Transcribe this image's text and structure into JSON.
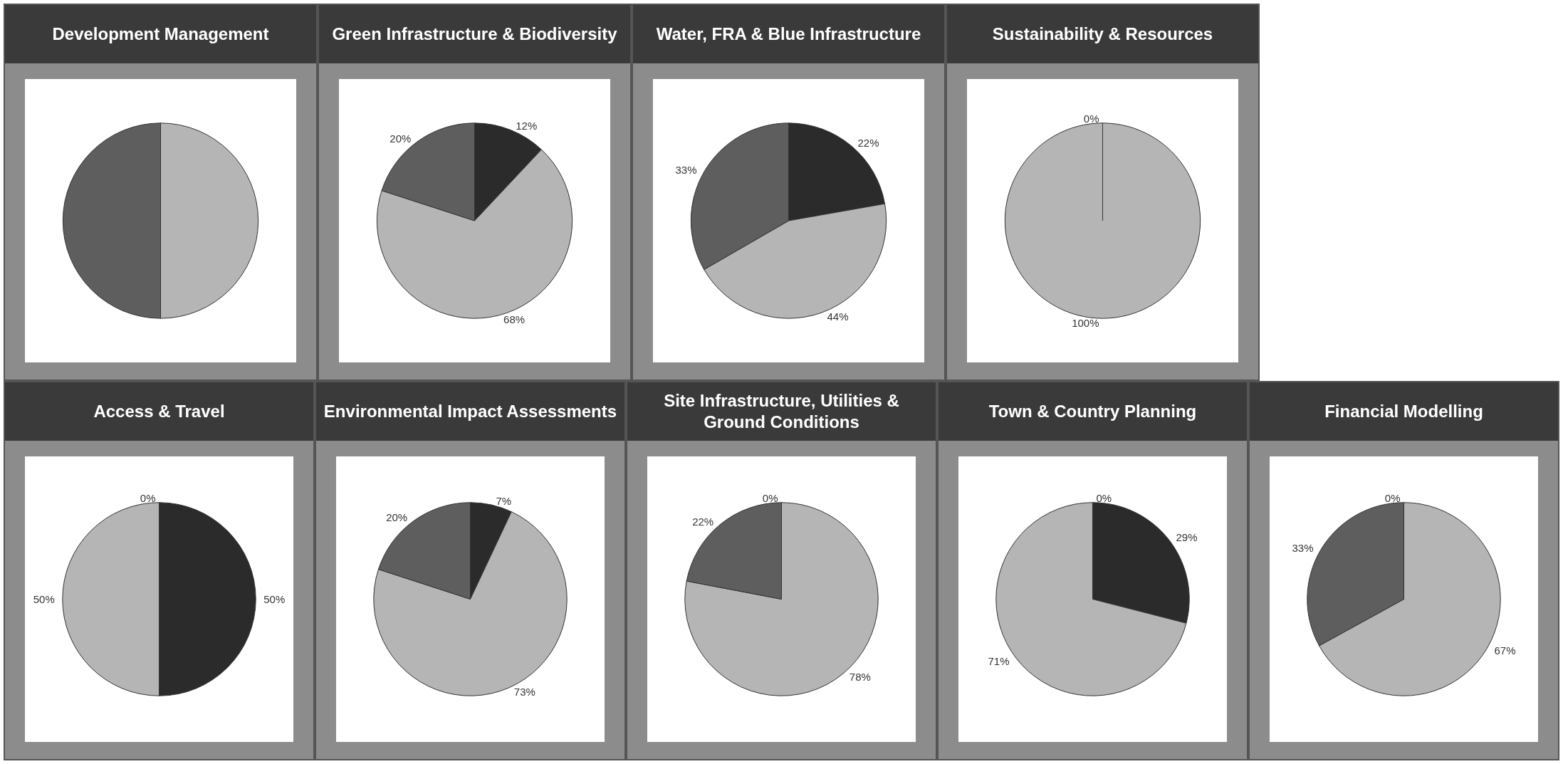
{
  "chart_data": [
    {
      "type": "pie",
      "title": "Development Management",
      "categories": [
        null,
        null,
        null
      ],
      "values": [
        0,
        50,
        50
      ],
      "colors": [
        "#2b2b2b",
        "#b5b5b5",
        "#5e5e5e"
      ],
      "value_labels": [
        null,
        null,
        null
      ]
    },
    {
      "type": "pie",
      "title": "Green Infrastructure & Biodiversity",
      "categories": [
        null,
        null,
        null
      ],
      "values": [
        12,
        68,
        20
      ],
      "colors": [
        "#2b2b2b",
        "#b5b5b5",
        "#5e5e5e"
      ],
      "value_labels": [
        "12%",
        "68%",
        "20%"
      ]
    },
    {
      "type": "pie",
      "title": "Water, FRA & Blue Infrastructure",
      "categories": [
        null,
        null,
        null
      ],
      "values": [
        22,
        44,
        33
      ],
      "colors": [
        "#2b2b2b",
        "#b5b5b5",
        "#5e5e5e"
      ],
      "value_labels": [
        "22%",
        "44%",
        "33%"
      ]
    },
    {
      "type": "pie",
      "title": "Sustainability & Resources",
      "categories": [
        null,
        null,
        null
      ],
      "values": [
        0,
        100,
        0
      ],
      "colors": [
        "#2b2b2b",
        "#b5b5b5",
        "#5e5e5e"
      ],
      "value_labels": [
        "0%",
        "100%",
        null
      ]
    },
    {
      "type": "pie",
      "title": "Access & Travel",
      "categories": [
        null,
        null,
        null
      ],
      "values": [
        50,
        50,
        0
      ],
      "colors": [
        "#2b2b2b",
        "#b5b5b5",
        "#5e5e5e"
      ],
      "value_labels": [
        "50%",
        "50%",
        "0%"
      ]
    },
    {
      "type": "pie",
      "title": "Environmental Impact Assessments",
      "categories": [
        null,
        null,
        null
      ],
      "values": [
        7,
        73,
        20
      ],
      "colors": [
        "#2b2b2b",
        "#b5b5b5",
        "#5e5e5e"
      ],
      "value_labels": [
        "7%",
        "73%",
        "20%"
      ]
    },
    {
      "type": "pie",
      "title": "Site Infrastructure, Utilities & Ground Conditions",
      "categories": [
        null,
        null,
        null
      ],
      "values": [
        0,
        78,
        22
      ],
      "colors": [
        "#2b2b2b",
        "#b5b5b5",
        "#5e5e5e"
      ],
      "value_labels": [
        "0%",
        "78%",
        "22%"
      ]
    },
    {
      "type": "pie",
      "title": "Town & Country Planning",
      "categories": [
        null,
        null,
        null
      ],
      "values": [
        29,
        71,
        0
      ],
      "colors": [
        "#2b2b2b",
        "#b5b5b5",
        "#5e5e5e"
      ],
      "value_labels": [
        "29%",
        "71%",
        "0%"
      ]
    },
    {
      "type": "pie",
      "title": "Financial Modelling",
      "categories": [
        null,
        null,
        null
      ],
      "values": [
        0,
        67,
        33
      ],
      "colors": [
        "#2b2b2b",
        "#b5b5b5",
        "#5e5e5e"
      ],
      "value_labels": [
        "0%",
        "67%",
        "33%"
      ]
    }
  ]
}
